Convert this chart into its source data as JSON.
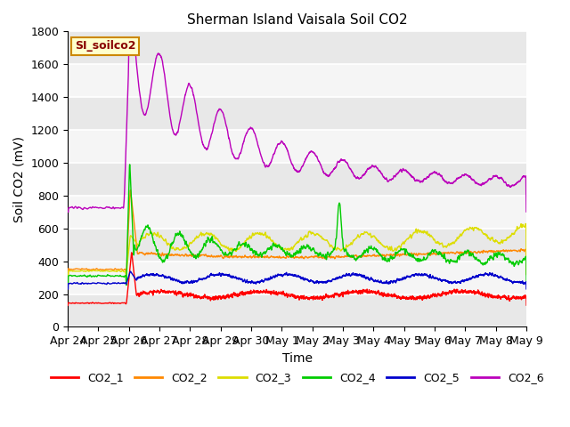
{
  "title": "Sherman Island Vaisala Soil CO2",
  "ylabel": "Soil CO2 (mV)",
  "xlabel": "Time",
  "watermark": "SI_soilco2",
  "ylim": [
    0,
    1800
  ],
  "xlim": [
    0,
    360
  ],
  "x_tick_labels": [
    "Apr 24",
    "Apr 25",
    "Apr 26",
    "Apr 27",
    "Apr 28",
    "Apr 29",
    "Apr 30",
    "May 1",
    "May 2",
    "May 3",
    "May 4",
    "May 5",
    "May 6",
    "May 7",
    "May 8",
    "May 9"
  ],
  "x_tick_positions": [
    0,
    24,
    48,
    72,
    96,
    120,
    144,
    168,
    192,
    216,
    240,
    264,
    288,
    312,
    336,
    360
  ],
  "colors": {
    "CO2_1": "#ff0000",
    "CO2_2": "#ff8800",
    "CO2_3": "#dddd00",
    "CO2_4": "#00cc00",
    "CO2_5": "#0000cc",
    "CO2_6": "#bb00bb"
  },
  "background_color": "#ffffff",
  "plot_bg_color": "#e8e8e8",
  "grid_color": "#ffffff",
  "watermark_bg": "#ffffcc",
  "watermark_border": "#cc8800",
  "watermark_text_color": "#880000"
}
